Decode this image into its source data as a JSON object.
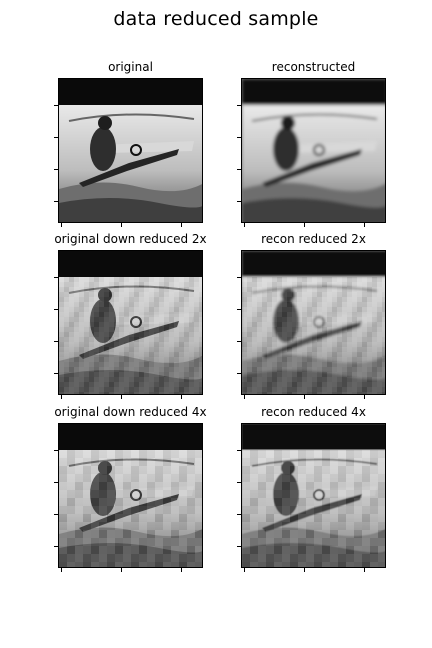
{
  "figure": {
    "title": "data reduced sample",
    "panels": [
      {
        "title": "original"
      },
      {
        "title": "reconstructed"
      },
      {
        "title": "original down reduced 2x"
      },
      {
        "title": "recon reduced 2x"
      },
      {
        "title": "original down reduced 4x"
      },
      {
        "title": "recon reduced 4x"
      }
    ]
  }
}
